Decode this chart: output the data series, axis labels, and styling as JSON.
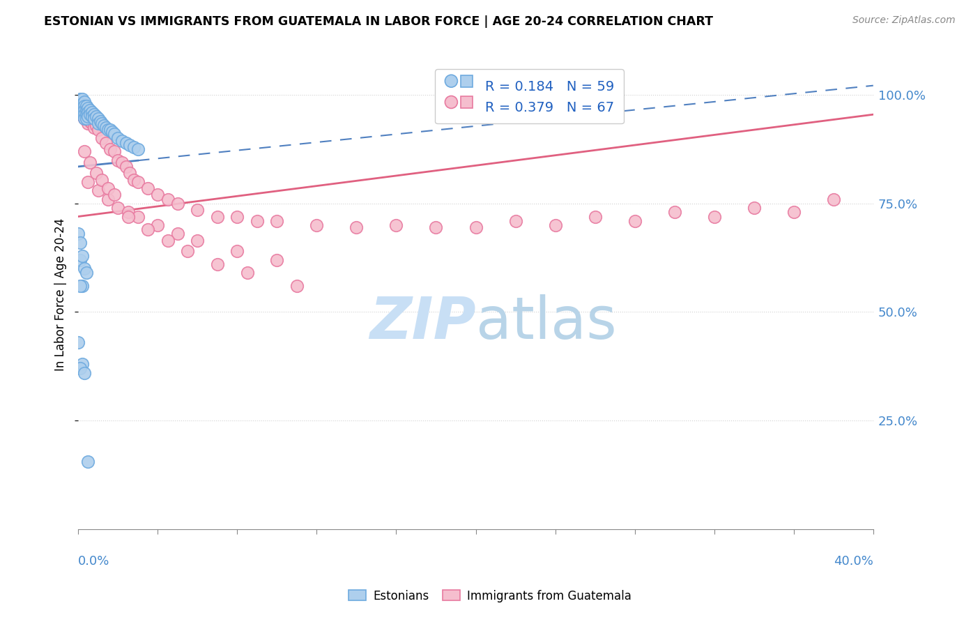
{
  "title": "ESTONIAN VS IMMIGRANTS FROM GUATEMALA IN LABOR FORCE | AGE 20-24 CORRELATION CHART",
  "source": "Source: ZipAtlas.com",
  "ylabel_axis": "In Labor Force | Age 20-24",
  "legend_blue_R": 0.184,
  "legend_blue_N": 59,
  "legend_blue_label": "Estonians",
  "legend_pink_R": 0.379,
  "legend_pink_N": 67,
  "legend_pink_label": "Immigrants from Guatemala",
  "blue_face": "#aecfed",
  "blue_edge": "#6eaadf",
  "pink_face": "#f5bece",
  "pink_edge": "#e87aa0",
  "trend_blue_color": "#5080c0",
  "trend_pink_color": "#e06080",
  "legend_R_color": "#2060c0",
  "legend_N_color": "#2060c0",
  "watermark_color": "#c8dff5",
  "right_axis_color": "#4488cc",
  "xmin": 0.0,
  "xmax": 0.4,
  "ymin": 0.0,
  "ymax": 1.08,
  "figwidth": 14.06,
  "figheight": 8.92,
  "dpi": 100,
  "blue_x": [
    0.0,
    0.001,
    0.001,
    0.001,
    0.001,
    0.001,
    0.002,
    0.002,
    0.002,
    0.002,
    0.002,
    0.003,
    0.003,
    0.003,
    0.003,
    0.003,
    0.004,
    0.004,
    0.004,
    0.004,
    0.005,
    0.005,
    0.005,
    0.006,
    0.006,
    0.007,
    0.007,
    0.008,
    0.008,
    0.009,
    0.01,
    0.01,
    0.011,
    0.012,
    0.013,
    0.014,
    0.015,
    0.016,
    0.017,
    0.018,
    0.02,
    0.022,
    0.024,
    0.026,
    0.028,
    0.03,
    0.0,
    0.001,
    0.001,
    0.002,
    0.003,
    0.004,
    0.002,
    0.001,
    0.0,
    0.002,
    0.001,
    0.003,
    0.005
  ],
  "blue_y": [
    0.97,
    0.98,
    0.99,
    0.975,
    0.965,
    0.96,
    0.99,
    0.98,
    0.97,
    0.965,
    0.96,
    0.985,
    0.975,
    0.965,
    0.955,
    0.945,
    0.975,
    0.965,
    0.955,
    0.945,
    0.97,
    0.96,
    0.95,
    0.965,
    0.955,
    0.96,
    0.95,
    0.955,
    0.945,
    0.95,
    0.945,
    0.935,
    0.94,
    0.935,
    0.93,
    0.925,
    0.92,
    0.92,
    0.915,
    0.91,
    0.9,
    0.895,
    0.89,
    0.885,
    0.88,
    0.875,
    0.68,
    0.66,
    0.62,
    0.63,
    0.6,
    0.59,
    0.56,
    0.56,
    0.43,
    0.38,
    0.37,
    0.36,
    0.155
  ],
  "pink_x": [
    0.001,
    0.002,
    0.003,
    0.004,
    0.005,
    0.006,
    0.007,
    0.008,
    0.009,
    0.01,
    0.012,
    0.014,
    0.016,
    0.018,
    0.02,
    0.022,
    0.024,
    0.026,
    0.028,
    0.03,
    0.035,
    0.04,
    0.045,
    0.05,
    0.06,
    0.07,
    0.08,
    0.09,
    0.1,
    0.12,
    0.14,
    0.16,
    0.18,
    0.2,
    0.22,
    0.24,
    0.26,
    0.28,
    0.3,
    0.32,
    0.34,
    0.36,
    0.38,
    0.005,
    0.01,
    0.015,
    0.02,
    0.025,
    0.03,
    0.04,
    0.05,
    0.06,
    0.08,
    0.1,
    0.003,
    0.006,
    0.009,
    0.012,
    0.015,
    0.018,
    0.025,
    0.035,
    0.045,
    0.055,
    0.07,
    0.085,
    0.11
  ],
  "pink_y": [
    0.955,
    0.96,
    0.945,
    0.95,
    0.935,
    0.94,
    0.935,
    0.925,
    0.93,
    0.92,
    0.9,
    0.89,
    0.875,
    0.87,
    0.85,
    0.845,
    0.835,
    0.82,
    0.805,
    0.8,
    0.785,
    0.77,
    0.76,
    0.75,
    0.735,
    0.72,
    0.72,
    0.71,
    0.71,
    0.7,
    0.695,
    0.7,
    0.695,
    0.695,
    0.71,
    0.7,
    0.72,
    0.71,
    0.73,
    0.72,
    0.74,
    0.73,
    0.76,
    0.8,
    0.78,
    0.76,
    0.74,
    0.73,
    0.72,
    0.7,
    0.68,
    0.665,
    0.64,
    0.62,
    0.87,
    0.845,
    0.82,
    0.805,
    0.785,
    0.77,
    0.72,
    0.69,
    0.665,
    0.64,
    0.61,
    0.59,
    0.56
  ],
  "blue_trend_x0": 0.0,
  "blue_trend_y0": 0.835,
  "blue_trend_x1": 0.3,
  "blue_trend_y1": 0.975,
  "pink_trend_x0": 0.0,
  "pink_trend_y0": 0.72,
  "pink_trend_x1": 0.4,
  "pink_trend_y1": 0.955
}
